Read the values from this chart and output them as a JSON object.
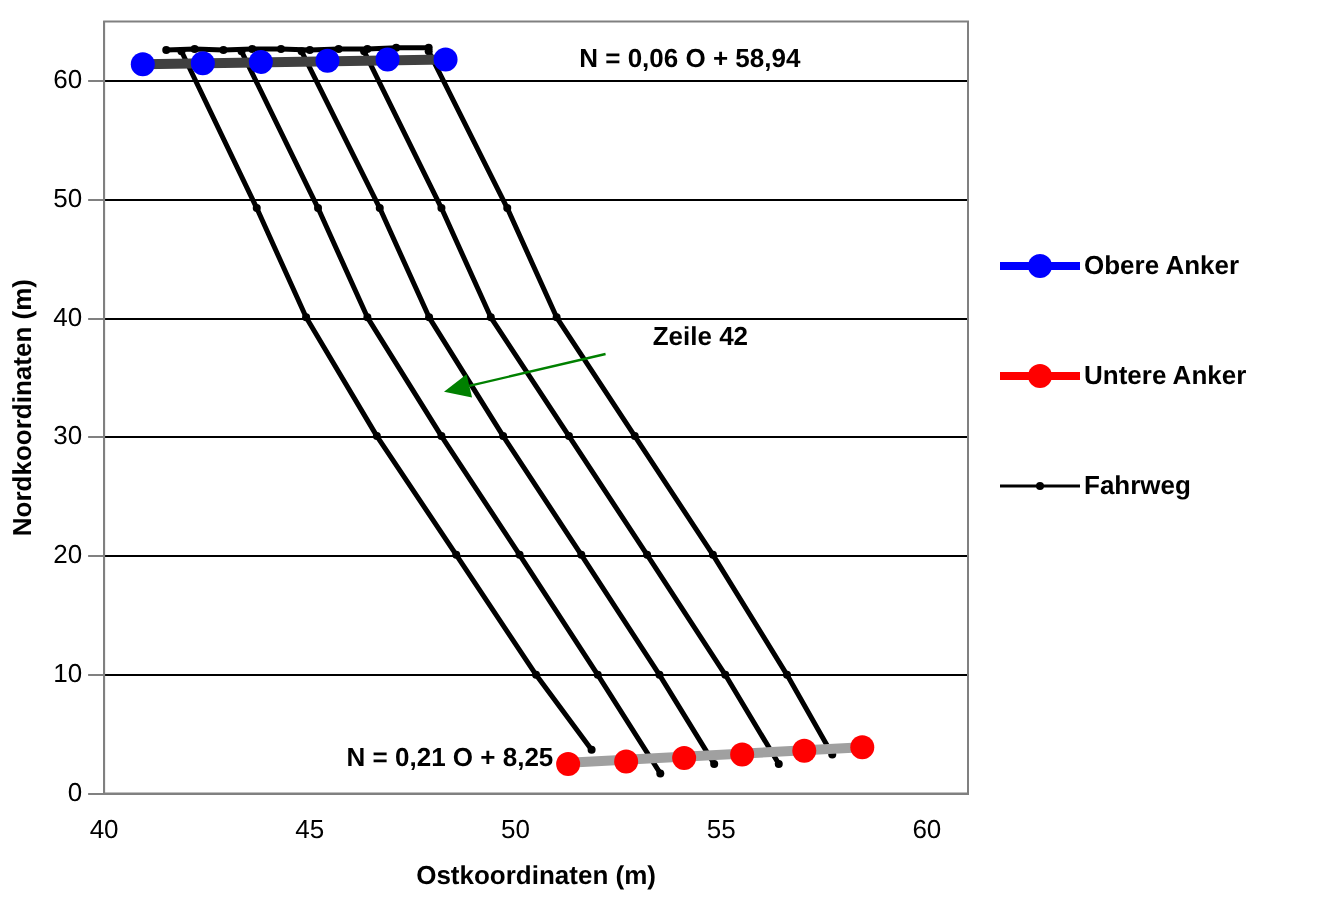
{
  "chart_data": {
    "type": "line",
    "xlabel": "Ostkoordinaten (m)",
    "ylabel": "Nordkoordinaten (m)",
    "xlim": [
      40,
      61
    ],
    "xticks": [
      40,
      45,
      50,
      55,
      60
    ],
    "ylim": [
      0,
      65
    ],
    "yticks": [
      0,
      10,
      20,
      30,
      40,
      50,
      60
    ],
    "grid": "y",
    "legend": "right",
    "annotations": [
      "N = 0,06 O + 58,94",
      "N = 0,21 O + 8,25",
      "Zeile 42"
    ],
    "series": [
      {
        "type": "line",
        "color": "#404040",
        "x": [
          40.94,
          48.3
        ],
        "values": [
          61.4,
          61.8
        ]
      },
      {
        "name": "Obere Anker",
        "type": "scatter",
        "color": "#0000ff",
        "marker": "circle",
        "x": [
          40.94,
          42.4,
          43.81,
          45.43,
          46.89,
          48.3
        ],
        "values": [
          61.4,
          61.5,
          61.6,
          61.7,
          61.8,
          61.8
        ]
      },
      {
        "type": "line",
        "color": "#a0a0a0",
        "x": [
          51.28,
          58.43
        ],
        "values": [
          2.6,
          3.9
        ]
      },
      {
        "name": "Untere Anker",
        "type": "scatter",
        "color": "#ff0000",
        "marker": "circle",
        "x": [
          51.28,
          52.69,
          54.1,
          55.51,
          57.02,
          58.43
        ],
        "values": [
          2.5,
          2.7,
          3.0,
          3.3,
          3.6,
          3.9
        ]
      },
      {
        "name": "Fahrweg",
        "type": "line",
        "color": "#000000",
        "marker": "circle",
        "x": [
          41.51,
          42.2,
          42.9,
          43.6,
          44.3,
          45.0,
          45.7,
          46.4,
          47.1,
          47.89,
          null,
          41.88,
          43.71,
          44.91,
          46.63,
          48.56,
          50.5,
          51.85,
          null,
          43.34,
          45.2,
          46.4,
          48.2,
          50.1,
          52.0,
          53.52,
          null,
          44.8,
          46.7,
          47.9,
          49.7,
          51.6,
          53.5,
          54.83,
          null,
          46.32,
          48.2,
          49.4,
          51.3,
          53.2,
          55.1,
          56.4,
          null,
          47.89,
          49.8,
          51.0,
          52.9,
          54.8,
          56.6,
          57.7
        ],
        "values": [
          62.6,
          62.7,
          62.6,
          62.7,
          62.7,
          62.6,
          62.7,
          62.7,
          62.8,
          62.8,
          null,
          62.5,
          49.3,
          40.1,
          30.1,
          20.1,
          10.0,
          3.7,
          null,
          62.5,
          49.3,
          40.1,
          30.1,
          20.1,
          10.0,
          1.7,
          null,
          62.5,
          49.3,
          40.1,
          30.1,
          20.1,
          10.0,
          2.5,
          null,
          62.5,
          49.3,
          40.1,
          30.1,
          20.1,
          10.0,
          2.5,
          null,
          62.5,
          49.3,
          40.1,
          30.1,
          20.1,
          10.0,
          3.3
        ]
      }
    ]
  }
}
